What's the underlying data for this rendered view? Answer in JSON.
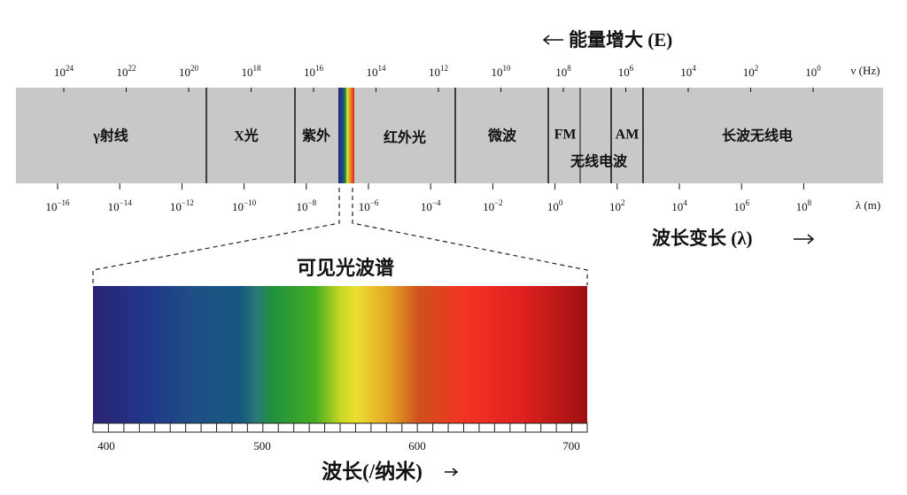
{
  "energy_label": "能量增大 (E)",
  "frequency_unit": "ν (Hz)",
  "frequency_ticks": [
    {
      "base": "10",
      "exp": "24"
    },
    {
      "base": "10",
      "exp": "22"
    },
    {
      "base": "10",
      "exp": "20"
    },
    {
      "base": "10",
      "exp": "18"
    },
    {
      "base": "10",
      "exp": "16"
    },
    {
      "base": "10",
      "exp": "14"
    },
    {
      "base": "10",
      "exp": "12"
    },
    {
      "base": "10",
      "exp": "10"
    },
    {
      "base": "10",
      "exp": "8"
    },
    {
      "base": "10",
      "exp": "6"
    },
    {
      "base": "10",
      "exp": "4"
    },
    {
      "base": "10",
      "exp": "2"
    },
    {
      "base": "10",
      "exp": "0"
    }
  ],
  "wavelength_unit": "λ (m)",
  "wavelength_ticks": [
    {
      "base": "10",
      "exp": "−16"
    },
    {
      "base": "10",
      "exp": "−14"
    },
    {
      "base": "10",
      "exp": "−12"
    },
    {
      "base": "10",
      "exp": "−10"
    },
    {
      "base": "10",
      "exp": "−8"
    },
    {
      "base": "10",
      "exp": "−6"
    },
    {
      "base": "10",
      "exp": "−4"
    },
    {
      "base": "10",
      "exp": "−2"
    },
    {
      "base": "10",
      "exp": "0"
    },
    {
      "base": "10",
      "exp": "2"
    },
    {
      "base": "10",
      "exp": "4"
    },
    {
      "base": "10",
      "exp": "6"
    },
    {
      "base": "10",
      "exp": "8"
    }
  ],
  "regions": [
    "γ射线",
    "X光",
    "紫外",
    "红外光",
    "微波",
    "FM",
    "AM",
    "长波无线电"
  ],
  "radio_label": "无线电波",
  "wavelength_label": "波长变长 (λ)",
  "visible": {
    "title": "可见光波谱",
    "ticks": [
      "400",
      "500",
      "600",
      "700"
    ],
    "axis_label": "波长(/纳米)"
  }
}
